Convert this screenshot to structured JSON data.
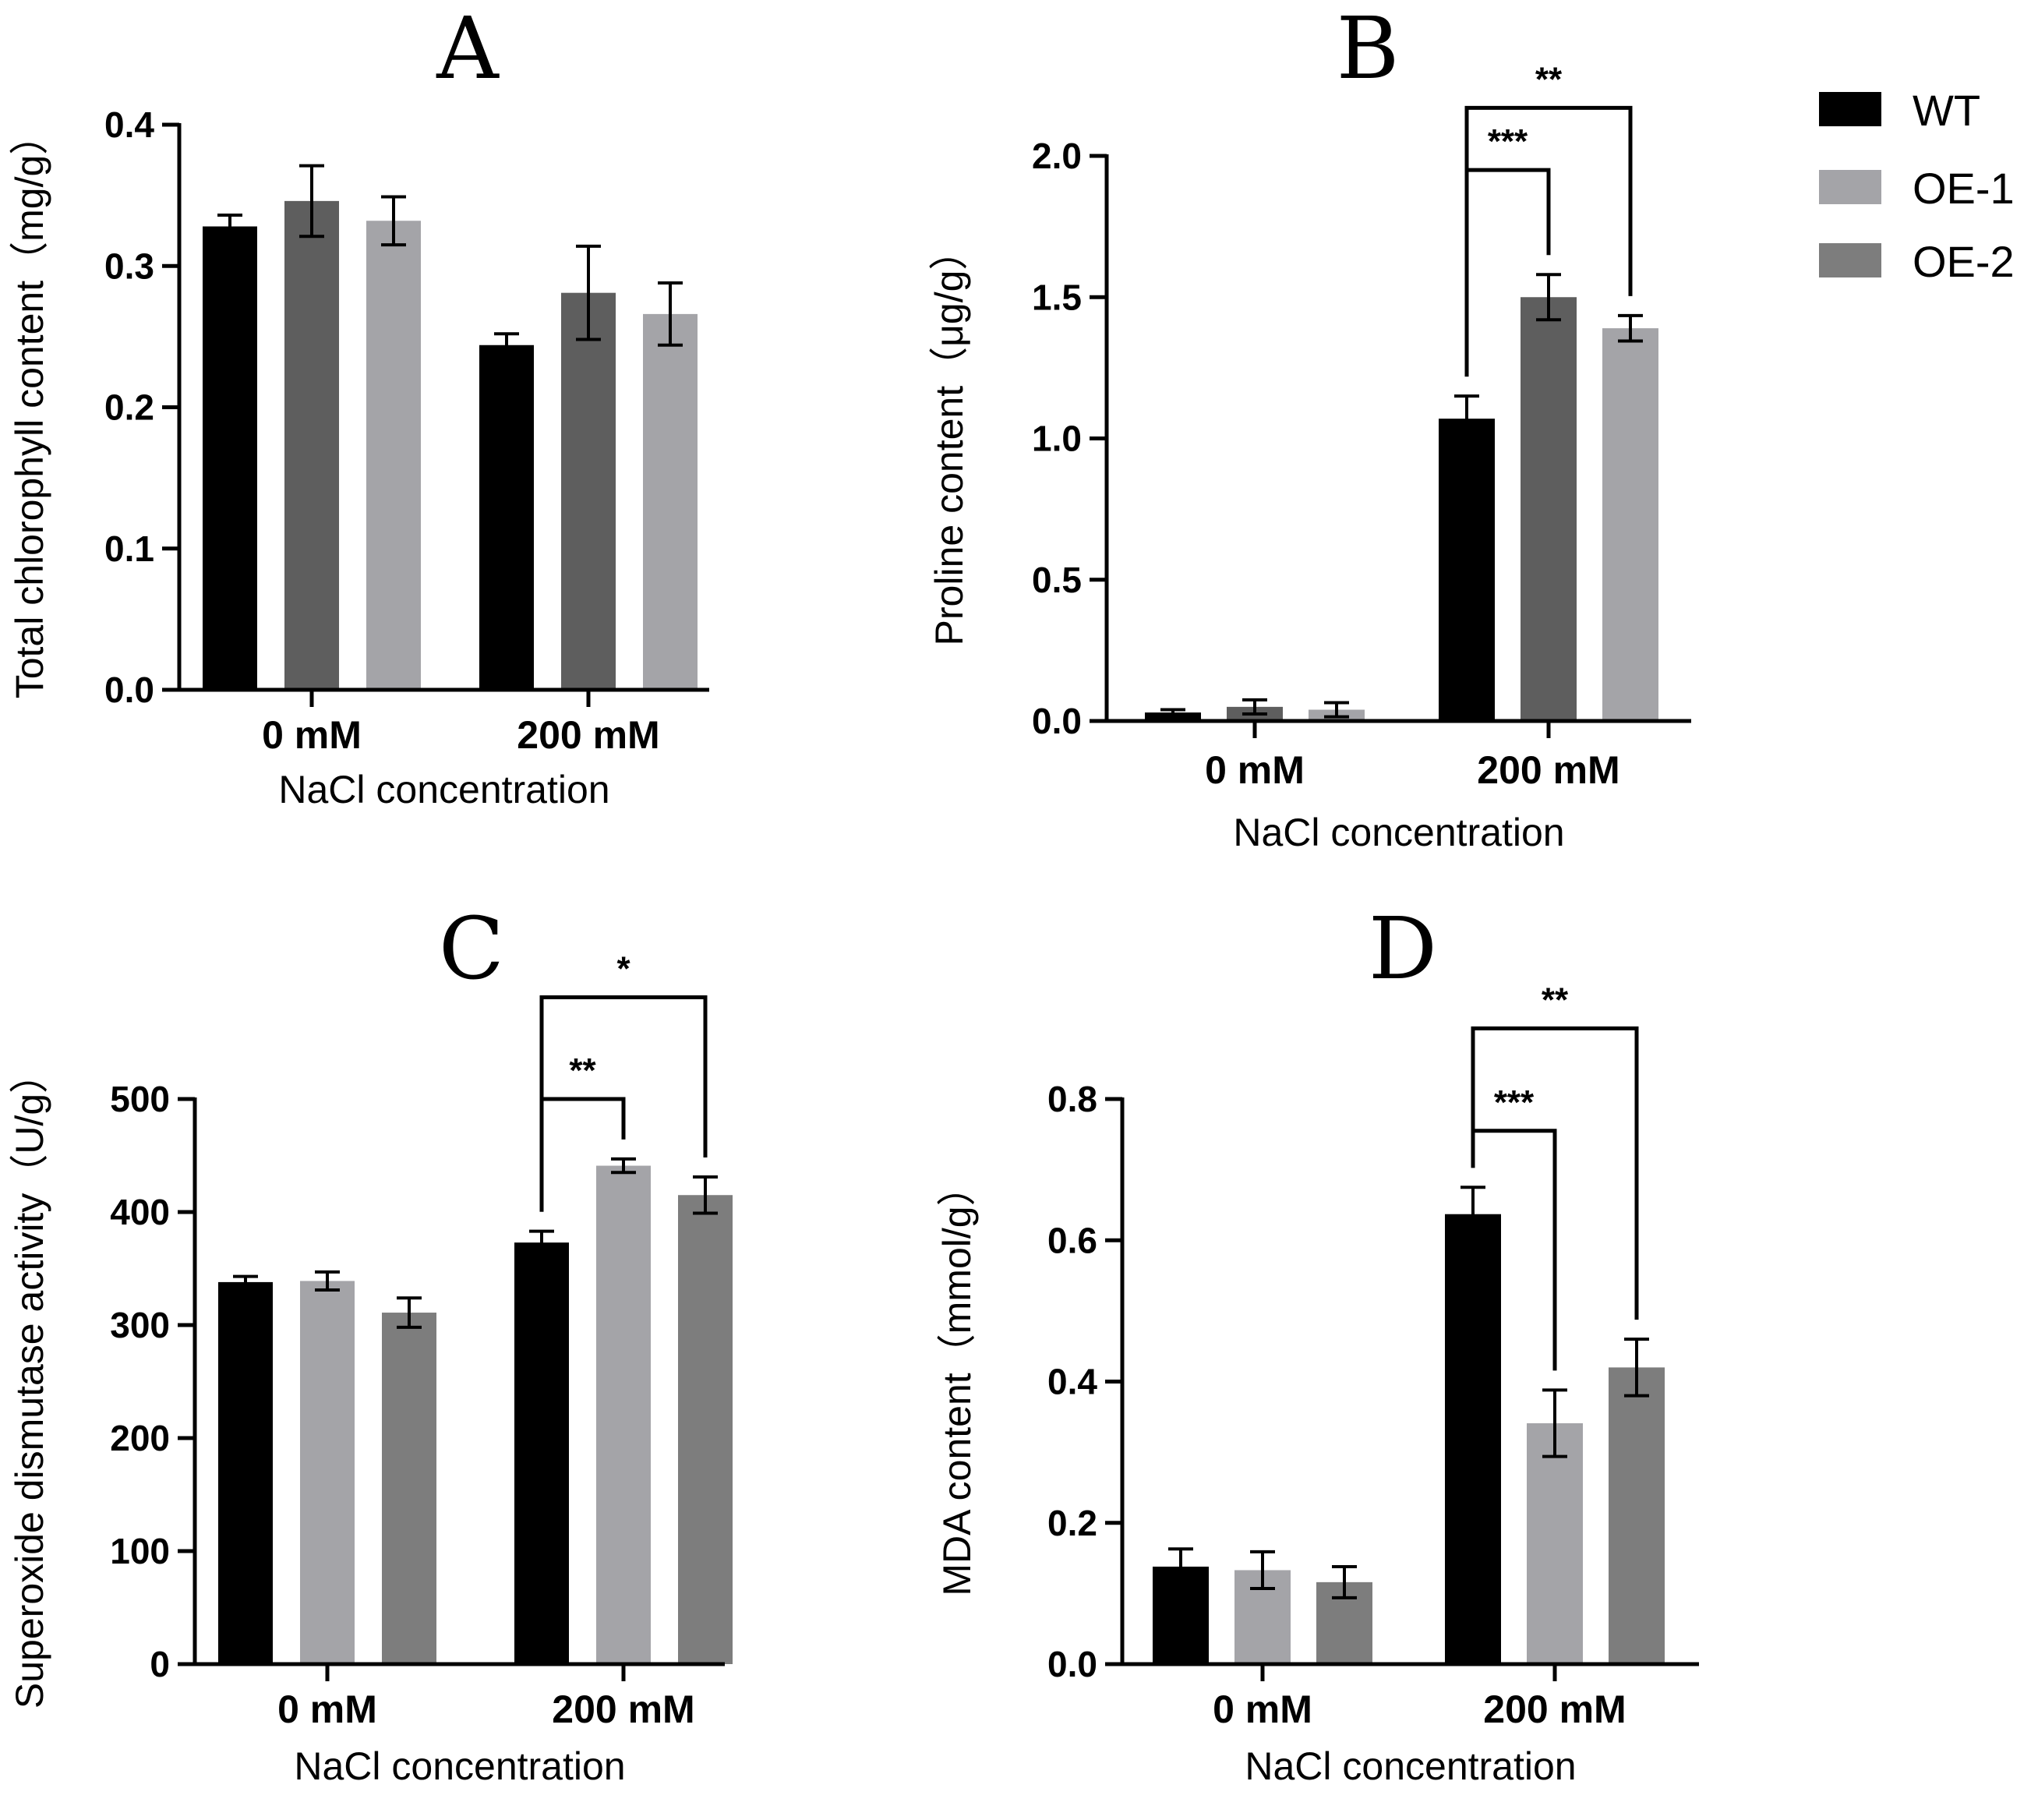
{
  "legend": {
    "items": [
      {
        "name": "WT",
        "color": "#000000"
      },
      {
        "name": "OE-1",
        "color": "#a4a4a8"
      },
      {
        "name": "OE-2",
        "color": "#7d7d7d"
      }
    ]
  },
  "chart_data": [
    {
      "panel": "A",
      "type": "bar",
      "title": "A",
      "xlabel": "NaCl concentration",
      "ylabel": "Total chlorophyll content（mg/g）",
      "categories": [
        "0 mM",
        "200 mM"
      ],
      "ylim": [
        0,
        0.4
      ],
      "yticks": [
        0.0,
        0.1,
        0.2,
        0.3,
        0.4
      ],
      "ytick_labels": [
        "0.0",
        "0.1",
        "0.2",
        "0.3",
        "0.4"
      ],
      "bar_colors": [
        "#000000",
        "#5e5e5e",
        "#a4a4a8"
      ],
      "series": [
        {
          "name": "WT",
          "values": [
            0.328,
            0.244
          ],
          "errors": [
            0.008,
            0.008
          ]
        },
        {
          "name": "OE-1",
          "values": [
            0.346,
            0.281
          ],
          "errors": [
            0.025,
            0.033
          ]
        },
        {
          "name": "OE-2",
          "values": [
            0.332,
            0.266
          ],
          "errors": [
            0.017,
            0.022
          ]
        }
      ],
      "significance": []
    },
    {
      "panel": "B",
      "type": "bar",
      "title": "B",
      "xlabel": "NaCl concentration",
      "ylabel": "Proline content（μg/g）",
      "categories": [
        "0 mM",
        "200 mM"
      ],
      "ylim": [
        0,
        2.0
      ],
      "yticks": [
        0.0,
        0.5,
        1.0,
        1.5,
        2.0
      ],
      "ytick_labels": [
        "0.0",
        "0.5",
        "1.0",
        "1.5",
        "2.0"
      ],
      "bar_colors": [
        "#000000",
        "#5e5e5e",
        "#a4a4a8"
      ],
      "series": [
        {
          "name": "WT",
          "values": [
            0.03,
            1.07
          ],
          "errors": [
            0.01,
            0.08
          ]
        },
        {
          "name": "OE-1",
          "values": [
            0.05,
            1.5
          ],
          "errors": [
            0.025,
            0.08
          ]
        },
        {
          "name": "OE-2",
          "values": [
            0.04,
            1.39
          ],
          "errors": [
            0.025,
            0.045
          ]
        }
      ],
      "significance": [
        {
          "category": 1,
          "from": 0,
          "to": 1,
          "label": "***",
          "y": 1.95
        },
        {
          "category": 1,
          "from": 0,
          "to": 2,
          "label": "**",
          "y": 2.17
        }
      ]
    },
    {
      "panel": "C",
      "type": "bar",
      "title": "C",
      "xlabel": "NaCl concentration",
      "ylabel": "Superoxide dismutase activity（U/g）",
      "categories": [
        "0 mM",
        "200 mM"
      ],
      "ylim": [
        0,
        500
      ],
      "yticks": [
        0,
        100,
        200,
        300,
        400,
        500
      ],
      "ytick_labels": [
        "0",
        "100",
        "200",
        "300",
        "400",
        "500"
      ],
      "bar_colors": [
        "#000000",
        "#a4a4a8",
        "#7d7d7d"
      ],
      "series": [
        {
          "name": "WT",
          "values": [
            338,
            373
          ],
          "errors": [
            5,
            10
          ]
        },
        {
          "name": "OE-1",
          "values": [
            339,
            441
          ],
          "errors": [
            8,
            6
          ]
        },
        {
          "name": "OE-2",
          "values": [
            311,
            415
          ],
          "errors": [
            13,
            16
          ]
        }
      ],
      "significance": [
        {
          "category": 1,
          "from": 0,
          "to": 1,
          "label": "**",
          "y": 500
        },
        {
          "category": 1,
          "from": 0,
          "to": 2,
          "label": "*",
          "y": 590
        }
      ]
    },
    {
      "panel": "D",
      "type": "bar",
      "title": "D",
      "xlabel": "NaCl concentration",
      "ylabel": "MDA content（mmol/g）",
      "categories": [
        "0 mM",
        "200 mM"
      ],
      "ylim": [
        0,
        0.8
      ],
      "yticks": [
        0.0,
        0.2,
        0.4,
        0.6,
        0.8
      ],
      "ytick_labels": [
        "0.0",
        "0.2",
        "0.4",
        "0.6",
        "0.8"
      ],
      "bar_colors": [
        "#000000",
        "#a4a4a8",
        "#7d7d7d"
      ],
      "series": [
        {
          "name": "WT",
          "values": [
            0.138,
            0.637
          ],
          "errors": [
            0.025,
            0.038
          ]
        },
        {
          "name": "OE-1",
          "values": [
            0.133,
            0.341
          ],
          "errors": [
            0.026,
            0.047
          ]
        },
        {
          "name": "OE-2",
          "values": [
            0.116,
            0.42
          ],
          "errors": [
            0.022,
            0.04
          ]
        }
      ],
      "significance": [
        {
          "category": 1,
          "from": 0,
          "to": 1,
          "label": "***",
          "y": 0.755
        },
        {
          "category": 1,
          "from": 0,
          "to": 2,
          "label": "**",
          "y": 0.9
        }
      ]
    }
  ]
}
